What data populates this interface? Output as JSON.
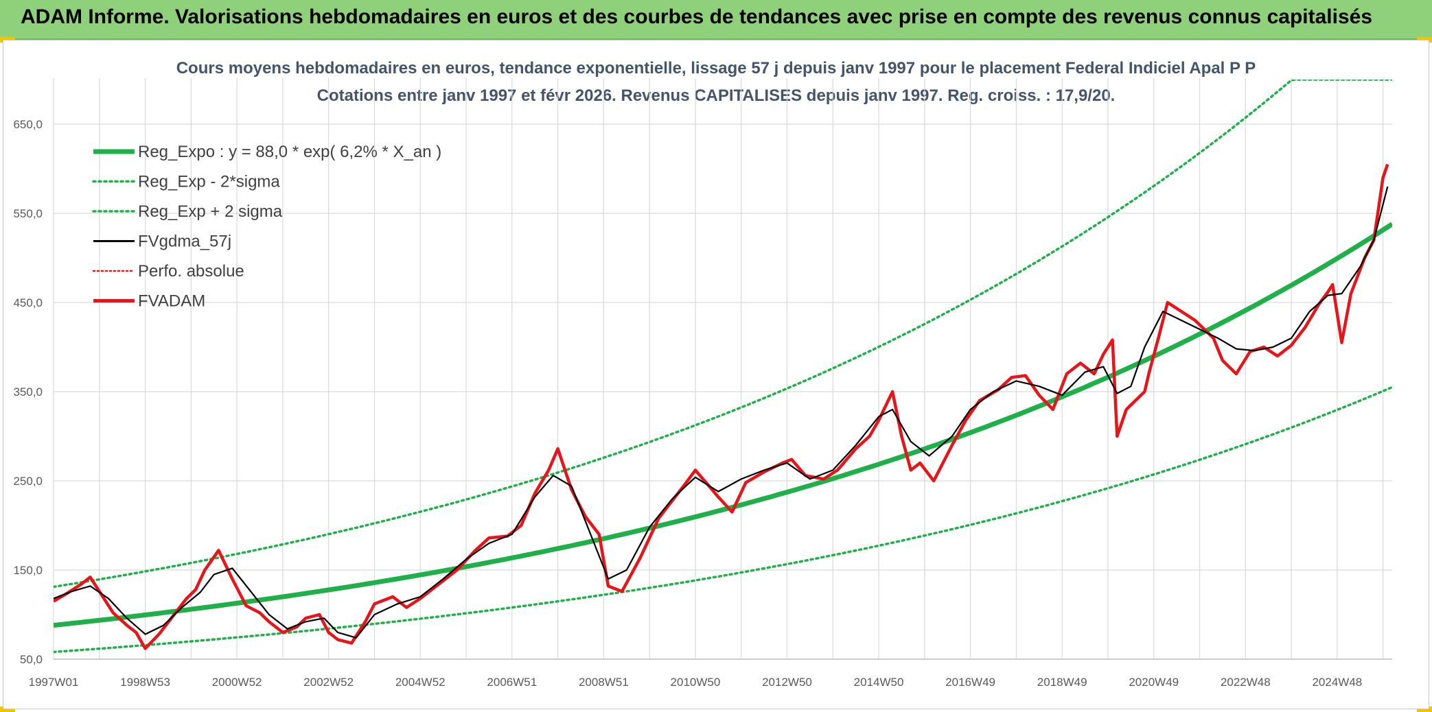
{
  "header": {
    "title": "ADAM Informe. Valorisations hebdomadaires en euros et des courbes de tendances avec prise en compte des revenus connus capitalisés"
  },
  "colors": {
    "banner": "#8fd07a",
    "trend": "#1fb04a",
    "smooth": "#000000",
    "price": "#e8141a",
    "grid": "#d9d9d9"
  },
  "chart_data": {
    "type": "line",
    "title": "Cours moyens hebdomadaires en euros, tendance exponentielle, lissage 57 j depuis janv 1997 pour le placement Federal Indiciel Apal P P",
    "subtitle": "Cotations entre janv 1997 et févr 2026. Revenus CAPITALISES depuis janv 1997. Reg. croiss. : 17,9/20.",
    "xlabel": "",
    "ylabel": "",
    "x_range": [
      1997.0,
      2026.2
    ],
    "ylim": [
      50,
      700
    ],
    "y_ticks": [
      50,
      150,
      250,
      350,
      450,
      550,
      650
    ],
    "y_tick_labels": [
      "50,0",
      "150,0",
      "250,0",
      "350,0",
      "450,0",
      "550,0",
      "650,0"
    ],
    "x_ticks": [
      1997.0,
      1999.0,
      2001.0,
      2003.0,
      2005.0,
      2007.0,
      2009.0,
      2011.0,
      2013.0,
      2015.0,
      2017.0,
      2019.0,
      2021.0,
      2023.0,
      2025.0
    ],
    "x_tick_labels": [
      "1997W01",
      "1998W53",
      "2000W52",
      "2002W52",
      "2004W52",
      "2006W51",
      "2008W51",
      "2010W50",
      "2012W50",
      "2014W50",
      "2016W49",
      "2018W49",
      "2020W49",
      "2022W48",
      "2024W48"
    ],
    "grid": true,
    "legend_position": "top-left",
    "legend": [
      {
        "label": "Reg_Expo : y = 88,0 * exp( 6,2% *  X_an )",
        "style": "thick-green"
      },
      {
        "label": "Reg_Exp - 2*sigma",
        "style": "dotted-green"
      },
      {
        "label": "Reg_Exp + 2 sigma",
        "style": "dotted-green"
      },
      {
        "label": "FVgdma_57j",
        "style": "solid-black"
      },
      {
        "label": "Perfo. absolue",
        "style": "dotted-red"
      },
      {
        "label": "FVADAM",
        "style": "thick-red"
      }
    ],
    "regression": {
      "a": 88.0,
      "rate": 0.062,
      "sigma_factor_low": 0.66,
      "sigma_factor_high": 1.49,
      "cap": 700
    },
    "series": [
      {
        "name": "FVADAM",
        "x": [
          1997.0,
          1997.3,
          1997.6,
          1997.8,
          1998.0,
          1998.3,
          1998.6,
          1998.8,
          1999.0,
          1999.3,
          1999.6,
          1999.9,
          2000.1,
          2000.3,
          2000.6,
          2000.9,
          2001.2,
          2001.5,
          2001.7,
          2002.0,
          2002.3,
          2002.5,
          2002.8,
          2003.0,
          2003.2,
          2003.5,
          2003.8,
          2004.0,
          2004.4,
          2004.7,
          2005.0,
          2005.4,
          2005.8,
          2006.2,
          2006.5,
          2006.9,
          2007.2,
          2007.5,
          2007.8,
          2008.0,
          2008.3,
          2008.6,
          2008.9,
          2009.1,
          2009.4,
          2009.8,
          2010.2,
          2010.5,
          2010.8,
          2011.0,
          2011.2,
          2011.5,
          2011.8,
          2012.1,
          2012.5,
          2012.9,
          2013.1,
          2013.4,
          2013.8,
          2014.1,
          2014.5,
          2014.8,
          2015.0,
          2015.3,
          2015.5,
          2015.7,
          2015.9,
          2016.2,
          2016.6,
          2016.9,
          2017.2,
          2017.6,
          2017.9,
          2018.2,
          2018.5,
          2018.8,
          2019.1,
          2019.4,
          2019.7,
          2019.9,
          2020.1,
          2020.2,
          2020.4,
          2020.6,
          2020.8,
          2020.9,
          2021.1,
          2021.3,
          2021.6,
          2021.9,
          2022.1,
          2022.3,
          2022.5,
          2022.8,
          2023.1,
          2023.4,
          2023.7,
          2024.0,
          2024.3,
          2024.6,
          2024.8,
          2024.9,
          2025.1,
          2025.3,
          2025.6,
          2025.8,
          2025.9,
          2026.0,
          2026.1
        ],
        "values": [
          115,
          124,
          134,
          142,
          126,
          102,
          88,
          80,
          62,
          78,
          98,
          118,
          128,
          150,
          172,
          140,
          110,
          102,
          92,
          80,
          86,
          96,
          100,
          80,
          72,
          68,
          92,
          112,
          120,
          108,
          118,
          134,
          150,
          172,
          186,
          188,
          200,
          236,
          262,
          286,
          240,
          210,
          190,
          132,
          126,
          164,
          208,
          228,
          248,
          262,
          250,
          232,
          215,
          248,
          260,
          270,
          274,
          256,
          252,
          262,
          286,
          300,
          318,
          350,
          300,
          262,
          270,
          250,
          290,
          318,
          340,
          352,
          366,
          368,
          346,
          330,
          370,
          382,
          370,
          392,
          408,
          300,
          330,
          340,
          350,
          372,
          410,
          450,
          440,
          430,
          420,
          410,
          385,
          370,
          395,
          400,
          390,
          402,
          422,
          448,
          462,
          470,
          405,
          460,
          500,
          520,
          555,
          590,
          605
        ]
      },
      {
        "name": "FVgdma_57j",
        "x": [
          1997.0,
          1997.4,
          1997.8,
          1998.2,
          1998.6,
          1999.0,
          1999.4,
          1999.8,
          2000.2,
          2000.5,
          2000.9,
          2001.3,
          2001.7,
          2002.1,
          2002.5,
          2002.9,
          2003.2,
          2003.6,
          2004.0,
          2004.5,
          2005.0,
          2005.5,
          2006.0,
          2006.5,
          2007.0,
          2007.5,
          2007.9,
          2008.3,
          2008.7,
          2009.1,
          2009.5,
          2010.0,
          2010.5,
          2011.0,
          2011.5,
          2012.0,
          2012.5,
          2013.0,
          2013.5,
          2014.0,
          2014.5,
          2015.0,
          2015.3,
          2015.7,
          2016.1,
          2016.6,
          2017.0,
          2017.5,
          2018.0,
          2018.5,
          2019.0,
          2019.5,
          2019.9,
          2020.2,
          2020.5,
          2020.8,
          2021.2,
          2021.6,
          2022.0,
          2022.4,
          2022.8,
          2023.2,
          2023.6,
          2024.0,
          2024.4,
          2024.8,
          2025.1,
          2025.5,
          2025.8,
          2026.1
        ],
        "values": [
          118,
          126,
          132,
          118,
          96,
          78,
          88,
          108,
          125,
          145,
          152,
          126,
          100,
          84,
          92,
          96,
          80,
          74,
          100,
          112,
          120,
          140,
          162,
          180,
          190,
          232,
          256,
          244,
          192,
          140,
          150,
          198,
          230,
          254,
          238,
          252,
          262,
          270,
          252,
          262,
          290,
          322,
          330,
          294,
          278,
          300,
          330,
          350,
          362,
          356,
          346,
          372,
          378,
          348,
          356,
          400,
          440,
          430,
          420,
          410,
          398,
          396,
          400,
          410,
          440,
          458,
          460,
          490,
          520,
          580
        ]
      }
    ]
  }
}
